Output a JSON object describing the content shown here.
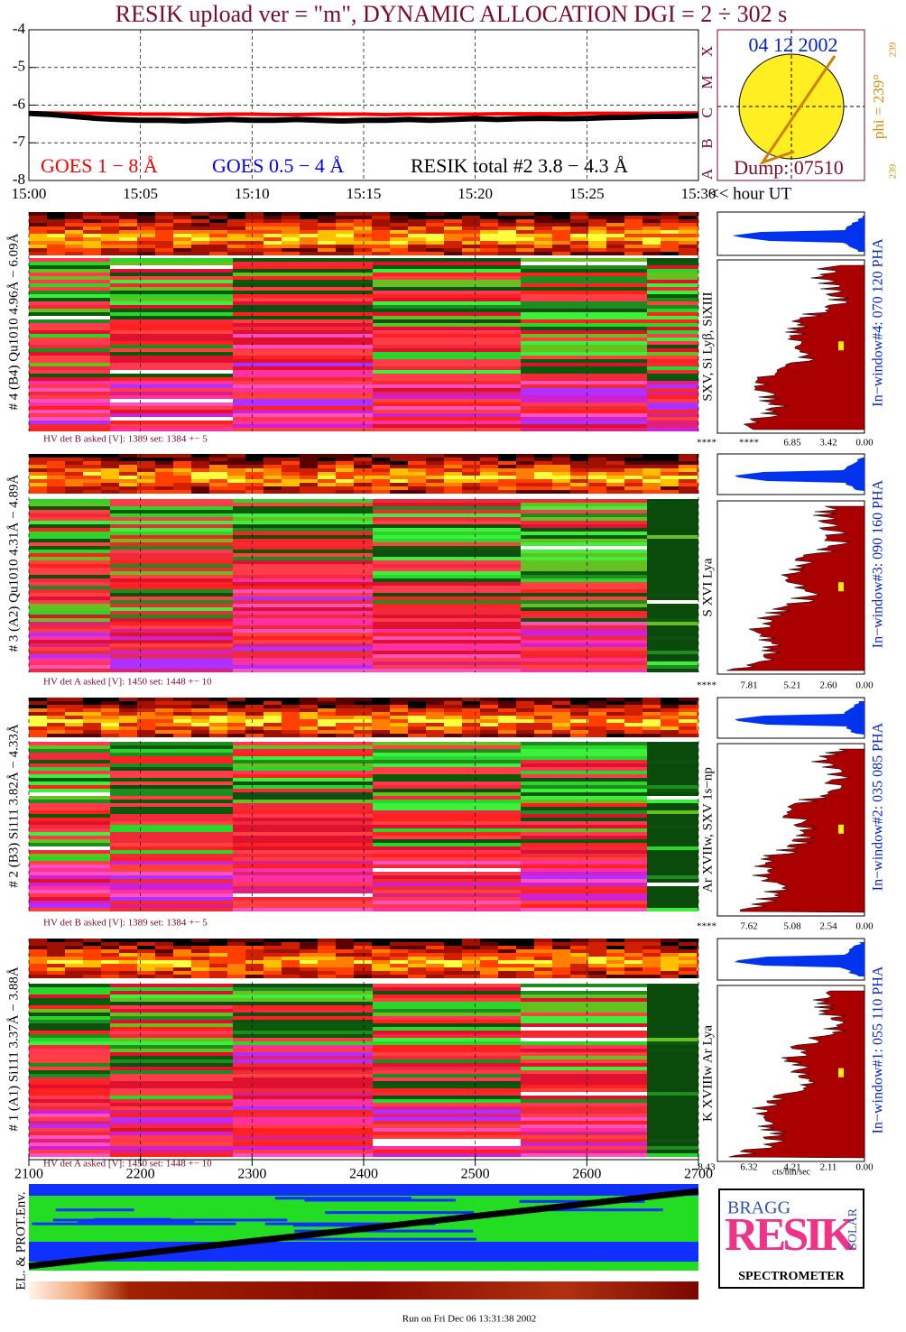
{
  "title": "RESIK upload ver = \"m\", DYNAMIC ALLOCATION  DGI =   2 ÷ 302 s",
  "chart_data": {
    "type": "line",
    "xlim": [
      0,
      30
    ],
    "xticks": [
      {
        "value": 0,
        "label": "15:00"
      },
      {
        "value": 5,
        "label": "15:05"
      },
      {
        "value": 10,
        "label": "15:10"
      },
      {
        "value": 15,
        "label": "15:15"
      },
      {
        "value": 20,
        "label": "15:20"
      },
      {
        "value": 25,
        "label": "15:25"
      },
      {
        "value": 30,
        "label": "15:30"
      }
    ],
    "x_label": "<< hour UT",
    "ylim": [
      -8,
      -4
    ],
    "yticks": [
      -4,
      -5,
      -6,
      -7,
      -8
    ],
    "grid": true,
    "x": [
      0,
      1,
      2,
      3,
      4,
      5,
      6,
      7,
      8,
      9,
      10,
      11,
      12,
      13,
      14,
      15,
      16,
      17,
      18,
      19,
      20,
      21,
      22,
      23,
      24,
      25,
      26,
      27,
      28,
      29,
      30
    ],
    "series": [
      {
        "name": "GOES 1 − 8 Å",
        "color": "#ff0000",
        "values": [
          -6.2,
          -6.21,
          -6.22,
          -6.22,
          -6.23,
          -6.24,
          -6.24,
          -6.24,
          -6.25,
          -6.24,
          -6.24,
          -6.25,
          -6.25,
          -6.24,
          -6.24,
          -6.24,
          -6.25,
          -6.24,
          -6.24,
          -6.24,
          -6.24,
          -6.23,
          -6.23,
          -6.23,
          -6.23,
          -6.22,
          -6.22,
          -6.22,
          -6.22,
          -6.21,
          -6.21
        ]
      },
      {
        "name": "GOES 0.5 − 4 Å",
        "color": "#0000ff",
        "values": [
          null,
          null,
          null,
          null,
          null,
          null,
          null,
          null,
          null,
          null,
          null,
          null,
          null,
          null,
          null,
          null,
          null,
          null,
          null,
          null,
          null,
          null,
          null,
          null,
          null,
          null,
          null,
          null,
          null,
          null,
          null
        ]
      },
      {
        "name": "RESIK total #2  3.8 − 4.3 Å",
        "color": "#000000",
        "values": [
          -6.22,
          -6.25,
          -6.3,
          -6.35,
          -6.38,
          -6.4,
          -6.4,
          -6.42,
          -6.4,
          -6.38,
          -6.4,
          -6.4,
          -6.38,
          -6.4,
          -6.42,
          -6.4,
          -6.4,
          -6.38,
          -6.4,
          -6.38,
          -6.36,
          -6.38,
          -6.36,
          -6.35,
          -6.36,
          -6.35,
          -6.33,
          -6.32,
          -6.3,
          -6.3,
          -6.28
        ]
      }
    ]
  },
  "sun": {
    "date": "04 12 2002",
    "dump": "Dump: 07510",
    "classes": [
      "A",
      "B",
      "C",
      "M",
      "X"
    ],
    "phi": "phi = 239°",
    "phi_top": "239",
    "phi_bottom": "239"
  },
  "panels": [
    {
      "label": "# 4 (B4) Qu1010 4.96Å − 6.09Å",
      "hv": "HV det B asked [V]:  1389 set:  1384 +−   5",
      "lines": "SXV, Si Lyβ, SiXIII",
      "window": "In−window#4:  070 120 PHA",
      "pha_scale": [
        "****",
        "****",
        "6.85",
        "3.42",
        "0.00"
      ]
    },
    {
      "label": "# 3 (A2) Qu1010  4.31Å − 4.89Å",
      "hv": "HV det A asked [V]:  1450 set:  1448 +−   10",
      "lines": "S XVI Lya",
      "window": "In−window#3:  090 160 PHA",
      "pha_scale": [
        "****",
        "7.81",
        "5.21",
        "2.60",
        "0.00"
      ]
    },
    {
      "label": "# 2 (B3) Si111  3.82Å − 4.33Å",
      "hv": "HV det B asked [V]:  1389 set:  1384 +−   5",
      "lines": "Ar XVIIw,  SXV 1s−np",
      "window": "In−window#2:  035 085 PHA",
      "pha_scale": [
        "****",
        "7.62",
        "5.08",
        "2.54",
        "0.00"
      ]
    },
    {
      "label": "# 1 (A1) Si111  3.37Å − 3.88Å",
      "hv": "HV det A asked [V]:  1450 set:  1448 +−   10",
      "lines": "K XVIIIw  Ar Lya",
      "window": "In−window#1:  055 110 PHA",
      "pha_scale": [
        "8.43",
        "6.32",
        "4.21",
        "2.11",
        "0.00"
      ]
    }
  ],
  "pha_unit": "cts/bin/sec",
  "bottom_axis": {
    "xlim": [
      2100,
      2700
    ],
    "xticks": [
      2100,
      2200,
      2300,
      2400,
      2500,
      2600,
      2700
    ]
  },
  "env_label": "EL. & PROT.Env.",
  "logo": {
    "top": "BRAGG",
    "word": "RESIK",
    "side": "SOLAR",
    "bottom": "SPECTROMETER"
  },
  "footer": "Run on Fri Dec 06 13:31:38 2002"
}
